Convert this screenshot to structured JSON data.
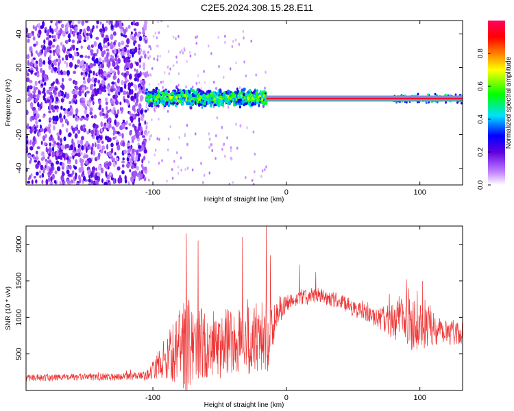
{
  "figure": {
    "title": "C2E5.2024.308.15.28.E11"
  },
  "chart_data": [
    {
      "type": "heatmap",
      "xlabel": "Height of straight line (km)",
      "ylabel": "Frequency (Hz)",
      "xlim": [
        -195,
        132
      ],
      "ylim": [
        -50,
        48
      ],
      "xticks": [
        -100,
        0,
        100
      ],
      "xtick_labels": [
        "-100",
        "0",
        "100"
      ],
      "yticks": [
        -40,
        -20,
        0,
        20,
        40
      ],
      "ytick_labels": [
        "-40",
        "-20",
        "0",
        "20",
        "40"
      ],
      "colorbar": {
        "label": "Normalized spectral amplitude",
        "range": [
          0,
          1
        ],
        "ticks": [
          0.0,
          0.2,
          0.4,
          0.6,
          0.8
        ],
        "tick_labels": [
          "0.0",
          "0.2",
          "0.4",
          "0.6",
          "0.8"
        ],
        "colors": [
          "#ffffff",
          "#c080ff",
          "#6000e0",
          "#0000ff",
          "#00e0ff",
          "#00ff00",
          "#ffff00",
          "#ff8000",
          "#ff0000",
          "#ff0060"
        ]
      },
      "regions": [
        {
          "name": "broadband noise",
          "x_range": [
            -195,
            -105
          ],
          "freq_range": [
            -50,
            48
          ],
          "amplitude": 0.15
        },
        {
          "name": "noisy transition",
          "x_range": [
            -105,
            -15
          ],
          "freq_center": 2,
          "freq_halfwidth": 7,
          "amplitude": 0.4
        },
        {
          "name": "sparse scatter",
          "x_range": [
            -105,
            -15
          ],
          "freq_range": [
            -50,
            48
          ],
          "amplitude": 0.05
        },
        {
          "name": "tone line",
          "x_range": [
            -15,
            132
          ],
          "freq_center": 1.5,
          "freq_halfwidth": 1,
          "amplitude": 0.95
        },
        {
          "name": "speckle",
          "x_range": [
            80,
            132
          ],
          "freq_center": 1.5,
          "freq_halfwidth": 3,
          "amplitude": 0.3
        }
      ],
      "grid": false
    },
    {
      "type": "line",
      "xlabel": "Height of straight line (km)",
      "ylabel": "SNR (10 * v/v)",
      "xlim": [
        -195,
        132
      ],
      "ylim": [
        0,
        2250
      ],
      "xticks": [
        -100,
        0,
        100
      ],
      "xtick_labels": [
        "-100",
        "0",
        "100"
      ],
      "yticks": [
        500,
        1000,
        1500,
        2000
      ],
      "ytick_labels": [
        "500",
        "1000",
        "1500",
        "2000"
      ],
      "color": "#ee3333",
      "series": [
        {
          "x": [
            -195,
            -180,
            -160,
            -140,
            -120,
            -105,
            -100,
            -90,
            -80,
            -75,
            -70,
            -60,
            -50,
            -40,
            -30,
            -20,
            -15,
            -10,
            -5,
            0,
            10,
            20,
            30,
            40,
            50,
            60,
            70,
            80,
            90,
            100,
            110,
            120,
            132
          ],
          "base": [
            170,
            175,
            180,
            185,
            190,
            200,
            280,
            450,
            580,
            620,
            600,
            640,
            600,
            680,
            720,
            700,
            760,
            900,
            1100,
            1180,
            1260,
            1300,
            1280,
            1220,
            1130,
            1050,
            980,
            960,
            950,
            900,
            860,
            820,
            780
          ],
          "amp": [
            50,
            50,
            50,
            50,
            50,
            60,
            120,
            300,
            500,
            700,
            600,
            500,
            450,
            500,
            550,
            500,
            600,
            300,
            200,
            120,
            110,
            110,
            110,
            110,
            120,
            120,
            140,
            300,
            400,
            350,
            250,
            200,
            150
          ]
        }
      ],
      "peaks": [
        [
          -75,
          2150
        ],
        [
          -66,
          2050
        ],
        [
          -33,
          2100
        ],
        [
          -15,
          2250
        ],
        [
          -12,
          1850
        ],
        [
          10,
          1720
        ],
        [
          22,
          1620
        ],
        [
          90,
          1520
        ],
        [
          102,
          1500
        ]
      ],
      "grid": false
    }
  ]
}
